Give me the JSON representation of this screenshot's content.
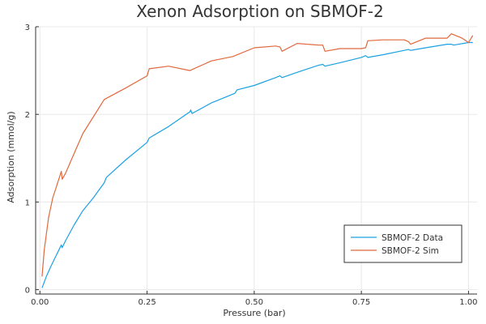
{
  "chart_data": {
    "type": "line",
    "title": "Xenon Adsorption on SBMOF-2",
    "xlabel": "Pressure (bar)",
    "ylabel": "Adsorption (mmol/g)",
    "xlim": [
      -0.01,
      1.02
    ],
    "ylim": [
      -0.05,
      3.0
    ],
    "xticks": [
      0,
      0.25,
      0.5,
      0.75,
      1.0
    ],
    "xtick_labels": [
      "0.00",
      "0.25",
      "0.50",
      "0.75",
      "1.00"
    ],
    "yticks": [
      0,
      1,
      2,
      3
    ],
    "ytick_labels": [
      "0",
      "1",
      "2",
      "3"
    ],
    "grid": true,
    "legend_position": "bottom-right",
    "series": [
      {
        "name": "SBMOF-2 Data",
        "color": "#1ba1e2",
        "x": [
          0.005,
          0.015,
          0.025,
          0.035,
          0.045,
          0.05,
          0.052,
          0.06,
          0.08,
          0.1,
          0.125,
          0.15,
          0.155,
          0.2,
          0.25,
          0.255,
          0.3,
          0.35,
          0.352,
          0.355,
          0.4,
          0.455,
          0.46,
          0.5,
          0.55,
          0.56,
          0.565,
          0.6,
          0.65,
          0.66,
          0.665,
          0.7,
          0.75,
          0.76,
          0.765,
          0.8,
          0.85,
          0.86,
          0.865,
          0.9,
          0.95,
          0.96,
          0.965,
          1.0,
          1.01
        ],
        "y": [
          0.02,
          0.15,
          0.26,
          0.36,
          0.46,
          0.51,
          0.48,
          0.56,
          0.74,
          0.9,
          1.05,
          1.22,
          1.28,
          1.48,
          1.68,
          1.73,
          1.86,
          2.03,
          2.05,
          2.01,
          2.13,
          2.24,
          2.28,
          2.33,
          2.42,
          2.44,
          2.42,
          2.48,
          2.56,
          2.57,
          2.55,
          2.59,
          2.65,
          2.67,
          2.65,
          2.68,
          2.73,
          2.74,
          2.73,
          2.76,
          2.8,
          2.8,
          2.79,
          2.82,
          2.82
        ]
      },
      {
        "name": "SBMOF-2 Sim",
        "color": "#e0683c",
        "x": [
          0.005,
          0.01,
          0.02,
          0.03,
          0.04,
          0.05,
          0.052,
          0.06,
          0.075,
          0.1,
          0.15,
          0.2,
          0.25,
          0.255,
          0.3,
          0.35,
          0.4,
          0.45,
          0.5,
          0.55,
          0.56,
          0.565,
          0.6,
          0.65,
          0.66,
          0.665,
          0.7,
          0.75,
          0.76,
          0.765,
          0.8,
          0.85,
          0.86,
          0.865,
          0.9,
          0.95,
          0.96,
          0.97,
          0.985,
          1.0,
          1.01
        ],
        "y": [
          0.15,
          0.45,
          0.82,
          1.05,
          1.2,
          1.35,
          1.26,
          1.33,
          1.5,
          1.78,
          2.17,
          2.3,
          2.44,
          2.52,
          2.55,
          2.5,
          2.61,
          2.66,
          2.76,
          2.78,
          2.77,
          2.72,
          2.81,
          2.79,
          2.79,
          2.72,
          2.75,
          2.75,
          2.76,
          2.84,
          2.85,
          2.85,
          2.83,
          2.8,
          2.87,
          2.87,
          2.92,
          2.9,
          2.87,
          2.82,
          2.9
        ]
      }
    ]
  }
}
